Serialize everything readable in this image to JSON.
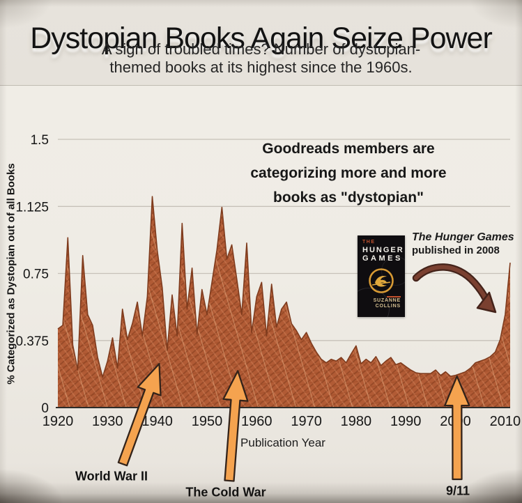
{
  "header": {
    "title": "Dystopian Books Again Seize Power",
    "subtitle_line1": "A sign of troubled times? Number of dystopian-",
    "subtitle_line2": "themed books at its highest since the 1960s."
  },
  "chart_data": {
    "type": "area",
    "title": "Dystopian Books Again Seize Power",
    "xlabel": "Publication Year",
    "ylabel": "% Categorized as Dystopian out of all Books",
    "start_year": 1920,
    "end_year": 2011,
    "ylim": [
      0,
      1.5
    ],
    "grid": true,
    "yticks": [
      0,
      0.375,
      0.75,
      1.125,
      1.5
    ],
    "ytick_labels": [
      "0",
      "0.375",
      "0.75",
      "1.125",
      "1.5"
    ],
    "xticks": [
      1920,
      1930,
      1940,
      1950,
      1960,
      1970,
      1980,
      1990,
      2000,
      2010
    ],
    "values": [
      0.44,
      0.46,
      0.95,
      0.35,
      0.21,
      0.85,
      0.52,
      0.46,
      0.28,
      0.17,
      0.26,
      0.39,
      0.22,
      0.55,
      0.38,
      0.47,
      0.59,
      0.4,
      0.62,
      1.18,
      0.88,
      0.67,
      0.32,
      0.63,
      0.4,
      1.03,
      0.55,
      0.78,
      0.41,
      0.66,
      0.52,
      0.7,
      0.88,
      1.12,
      0.83,
      0.91,
      0.72,
      0.52,
      0.92,
      0.42,
      0.62,
      0.7,
      0.4,
      0.69,
      0.45,
      0.55,
      0.59,
      0.47,
      0.43,
      0.38,
      0.42,
      0.36,
      0.31,
      0.27,
      0.25,
      0.27,
      0.26,
      0.28,
      0.25,
      0.3,
      0.345,
      0.245,
      0.27,
      0.25,
      0.285,
      0.235,
      0.26,
      0.28,
      0.24,
      0.25,
      0.23,
      0.21,
      0.195,
      0.19,
      0.19,
      0.19,
      0.21,
      0.18,
      0.2,
      0.175,
      0.18,
      0.19,
      0.2,
      0.22,
      0.25,
      0.26,
      0.27,
      0.285,
      0.31,
      0.38,
      0.52,
      0.81
    ],
    "note": {
      "line1": "Goodreads members are",
      "line2": "categorizing more and more",
      "line3": "books as \"dystopian\""
    },
    "hunger_games_note": {
      "line1": "The Hunger Games",
      "line2": "published in 2008"
    },
    "event_annotations": [
      {
        "label": "World War II",
        "year": 1940.4,
        "tip_value": 0.245
      },
      {
        "label": "The Cold War",
        "year": 1956.2,
        "tip_value": 0.205
      },
      {
        "label": "9/11",
        "year": 2000.3,
        "tip_value": 0.175
      }
    ]
  },
  "book_cover": {
    "the": "THE",
    "title_line1": "HUNGER",
    "title_line2": "GAMES",
    "author_line1": "SUZANNE",
    "author_line2": "COLLINS"
  },
  "colors": {
    "area_fill": "#b15b35",
    "area_outline": "#7f3b1d",
    "grid": "#c6c1b8",
    "axis": "#2e2c29",
    "arrow_fill": "#f5a34f",
    "arrow_outline": "#33231a",
    "curve_arrow": "#7a4030",
    "curve_arrow_outline": "#44231a"
  }
}
